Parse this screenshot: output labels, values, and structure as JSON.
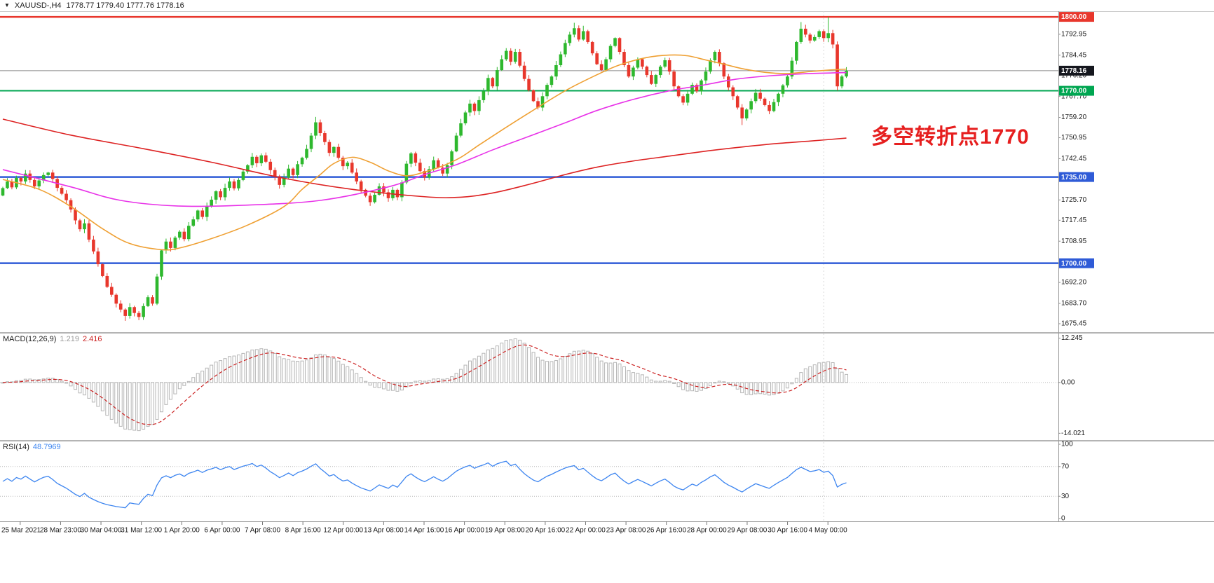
{
  "header": {
    "dropdown_icon": "▼",
    "symbol_period": "XAUUSD-,H4",
    "ohlc": "1778.77 1779.40 1777.76 1778.16"
  },
  "annotation": {
    "text": "多空转折点1770",
    "color": "#e61f1f"
  },
  "colors": {
    "candle_up": "#2eb82e",
    "candle_down": "#e8372c",
    "histogram": "#b5b5b5",
    "macd_signal": "#cc2222",
    "rsi_line": "#3d85f0",
    "level_red": "#e8372c",
    "level_green": "#00a651",
    "level_blue": "#2f5bd7",
    "current_badge_bg": "#15171e",
    "axis_text": "#1a1a1a"
  },
  "chart_data": [
    {
      "type": "candlestick",
      "title": "XAUUSD H4 candlestick chart",
      "x_labels": [
        "25 Mar 2021",
        "28 Mar 23:00",
        "30 Mar 04:00",
        "31 Mar 12:00",
        "1 Apr 20:00",
        "6 Apr 00:00",
        "7 Apr 08:00",
        "8 Apr 16:00",
        "12 Apr 00:00",
        "13 Apr 08:00",
        "14 Apr 16:00",
        "16 Apr 00:00",
        "19 Apr 08:00",
        "20 Apr 16:00",
        "22 Apr 00:00",
        "23 Apr 08:00",
        "26 Apr 16:00",
        "28 Apr 00:00",
        "29 Apr 08:00",
        "30 Apr 16:00",
        "4 May 00:00"
      ],
      "first_open": 1727.5,
      "closes": [
        1730.5,
        1733.2,
        1730.8,
        1734.6,
        1733.2,
        1736.4,
        1733.8,
        1731.2,
        1733.6,
        1735.8,
        1736.8,
        1734.2,
        1730.6,
        1728.2,
        1725.6,
        1721.8,
        1717.4,
        1713.8,
        1716.2,
        1709.6,
        1704.8,
        1699.6,
        1694.8,
        1690.4,
        1687.2,
        1683.6,
        1681.2,
        1678.6,
        1682.2,
        1679.8,
        1678.2,
        1682.6,
        1686.2,
        1683.6,
        1694.6,
        1705.2,
        1708.8,
        1706.2,
        1710.4,
        1712.8,
        1709.8,
        1715.2,
        1717.8,
        1721.4,
        1718.8,
        1723.2,
        1725.8,
        1729.2,
        1726.8,
        1730.6,
        1733.2,
        1730.4,
        1733.8,
        1737.2,
        1739.8,
        1743.2,
        1740.6,
        1743.8,
        1741.2,
        1737.8,
        1735.2,
        1731.8,
        1734.8,
        1738.4,
        1735.8,
        1740.2,
        1742.8,
        1746.4,
        1751.8,
        1757.2,
        1752.8,
        1749.2,
        1744.8,
        1747.2,
        1742.8,
        1739.4,
        1740.8,
        1736.8,
        1733.2,
        1729.8,
        1727.4,
        1724.8,
        1727.8,
        1731.2,
        1728.8,
        1726.4,
        1729.8,
        1726.8,
        1732.8,
        1740.4,
        1744.6,
        1740.8,
        1737.4,
        1734.8,
        1738.2,
        1741.8,
        1738.8,
        1736.4,
        1739.8,
        1745.4,
        1751.8,
        1756.8,
        1761.2,
        1764.8,
        1761.8,
        1766.2,
        1769.8,
        1775.2,
        1771.8,
        1778.4,
        1782.8,
        1786.2,
        1781.8,
        1785.8,
        1780.2,
        1774.8,
        1770.2,
        1765.8,
        1763.2,
        1767.8,
        1772.4,
        1775.8,
        1780.4,
        1784.8,
        1789.4,
        1792.8,
        1795.4,
        1790.8,
        1794.2,
        1789.8,
        1785.2,
        1780.8,
        1778.4,
        1782.8,
        1788.2,
        1791.4,
        1785.8,
        1780.4,
        1775.8,
        1779.4,
        1782.8,
        1779.8,
        1776.4,
        1772.8,
        1776.4,
        1779.8,
        1782.4,
        1777.8,
        1771.8,
        1767.8,
        1765.2,
        1768.8,
        1772.4,
        1769.8,
        1774.2,
        1777.8,
        1782.4,
        1785.8,
        1781.2,
        1775.8,
        1771.4,
        1767.8,
        1763.2,
        1758.8,
        1762.4,
        1765.8,
        1769.2,
        1766.8,
        1764.2,
        1761.8,
        1765.4,
        1768.8,
        1772.2,
        1775.8,
        1782.2,
        1789.8,
        1795.2,
        1792.8,
        1790.4,
        1791.8,
        1794.2,
        1791.4,
        1793.4,
        1788.8,
        1771.8,
        1775.8,
        1778.2
      ],
      "wick_high_overrides": {
        "69": 1759.4,
        "101": 1758.6,
        "126": 1797.6,
        "128": 1796.4,
        "176": 1797.9,
        "182": 1800.0
      },
      "wick_low_overrides": {
        "27": 1676.6,
        "30": 1676.9,
        "163": 1756.1,
        "184": 1770.1
      },
      "ylim": [
        1672.6,
        1802.3
      ],
      "y_ticks": [
        1792.95,
        1784.45,
        1776.2,
        1767.7,
        1759.2,
        1750.95,
        1742.45,
        1725.7,
        1717.45,
        1708.95,
        1692.2,
        1683.7,
        1675.45
      ],
      "levels": [
        {
          "price": 1800.0,
          "label": "1800.00",
          "color": "#e8372c",
          "width": 2.5
        },
        {
          "price": 1770.0,
          "label": "1770.00",
          "color": "#00a651",
          "width": 2
        },
        {
          "price": 1735.0,
          "label": "1735.00",
          "color": "#2f5bd7",
          "width": 2.5
        },
        {
          "price": 1700.0,
          "label": "1700.00",
          "color": "#2f5bd7",
          "width": 2.5
        }
      ],
      "current_price": {
        "value": 1778.16,
        "label": "1778.16"
      },
      "moving_averages": [
        {
          "name": "slow",
          "color": "#dd2222",
          "points": [
            [
              0,
              1758.5
            ],
            [
              15,
              1752
            ],
            [
              31,
              1746.5
            ],
            [
              46,
              1741
            ],
            [
              62,
              1734.5
            ],
            [
              77,
              1730
            ],
            [
              93,
              1727
            ],
            [
              101,
              1726.8
            ],
            [
              108,
              1728.5
            ],
            [
              116,
              1732
            ],
            [
              124,
              1736
            ],
            [
              131,
              1739
            ],
            [
              139,
              1741.5
            ],
            [
              147,
              1743.5
            ],
            [
              155,
              1745.5
            ],
            [
              162,
              1747
            ],
            [
              170,
              1748.5
            ],
            [
              178,
              1749.6
            ],
            [
              186,
              1750.8
            ]
          ]
        },
        {
          "name": "medium",
          "color": "#e832e8",
          "points": [
            [
              0,
              1738
            ],
            [
              15,
              1731
            ],
            [
              26,
              1725.5
            ],
            [
              39,
              1723.2
            ],
            [
              54,
              1723.6
            ],
            [
              70,
              1725.5
            ],
            [
              85,
              1731
            ],
            [
              93,
              1736
            ],
            [
              100,
              1740
            ],
            [
              108,
              1746
            ],
            [
              116,
              1751.5
            ],
            [
              124,
              1757
            ],
            [
              131,
              1762
            ],
            [
              139,
              1766.5
            ],
            [
              147,
              1770
            ],
            [
              155,
              1772.5
            ],
            [
              162,
              1774.8
            ],
            [
              170,
              1776.2
            ],
            [
              178,
              1777
            ],
            [
              186,
              1777.4
            ]
          ]
        },
        {
          "name": "fast",
          "color": "#efa033",
          "points": [
            [
              0,
              1734
            ],
            [
              8,
              1730
            ],
            [
              15,
              1723
            ],
            [
              22,
              1714
            ],
            [
              28,
              1708
            ],
            [
              35,
              1705.5
            ],
            [
              39,
              1706.2
            ],
            [
              46,
              1710
            ],
            [
              54,
              1715.5
            ],
            [
              62,
              1723
            ],
            [
              66,
              1730
            ],
            [
              70,
              1736
            ],
            [
              73,
              1740.5
            ],
            [
              77,
              1743
            ],
            [
              81,
              1741
            ],
            [
              85,
              1737.5
            ],
            [
              89,
              1735.5
            ],
            [
              93,
              1737
            ],
            [
              97,
              1739.5
            ],
            [
              101,
              1743
            ],
            [
              105,
              1748
            ],
            [
              110,
              1754
            ],
            [
              116,
              1761
            ],
            [
              124,
              1770
            ],
            [
              131,
              1776.5
            ],
            [
              136,
              1780.5
            ],
            [
              142,
              1783.5
            ],
            [
              147,
              1784.5
            ],
            [
              151,
              1784.2
            ],
            [
              155,
              1782.5
            ],
            [
              159,
              1780.8
            ],
            [
              163,
              1779
            ],
            [
              168,
              1777.5
            ],
            [
              173,
              1777
            ],
            [
              178,
              1777.8
            ],
            [
              182,
              1778.4
            ],
            [
              186,
              1778.8
            ]
          ]
        }
      ],
      "period_separator_index": 181
    },
    {
      "type": "macd",
      "label": "MACD(12,26,9)",
      "value_main": "1.219",
      "value_signal": "2.416",
      "params": [
        12,
        26,
        9
      ],
      "ylim": [
        -15.5,
        13.5
      ],
      "y_ticks": [
        [
          12.245,
          "12.245"
        ],
        [
          0,
          "0.00"
        ],
        [
          -14.021,
          "-14.021"
        ]
      ],
      "computed_from_closes": true
    },
    {
      "type": "rsi",
      "label": "RSI(14)",
      "value": "48.7969",
      "period": 14,
      "levels": [
        70,
        30
      ],
      "y_ticks": [
        [
          100,
          "100"
        ],
        [
          70,
          "70"
        ],
        [
          30,
          "30"
        ],
        [
          0,
          "0"
        ]
      ],
      "ylim": [
        -3.8,
        103.8
      ],
      "computed_from_closes": true
    }
  ]
}
